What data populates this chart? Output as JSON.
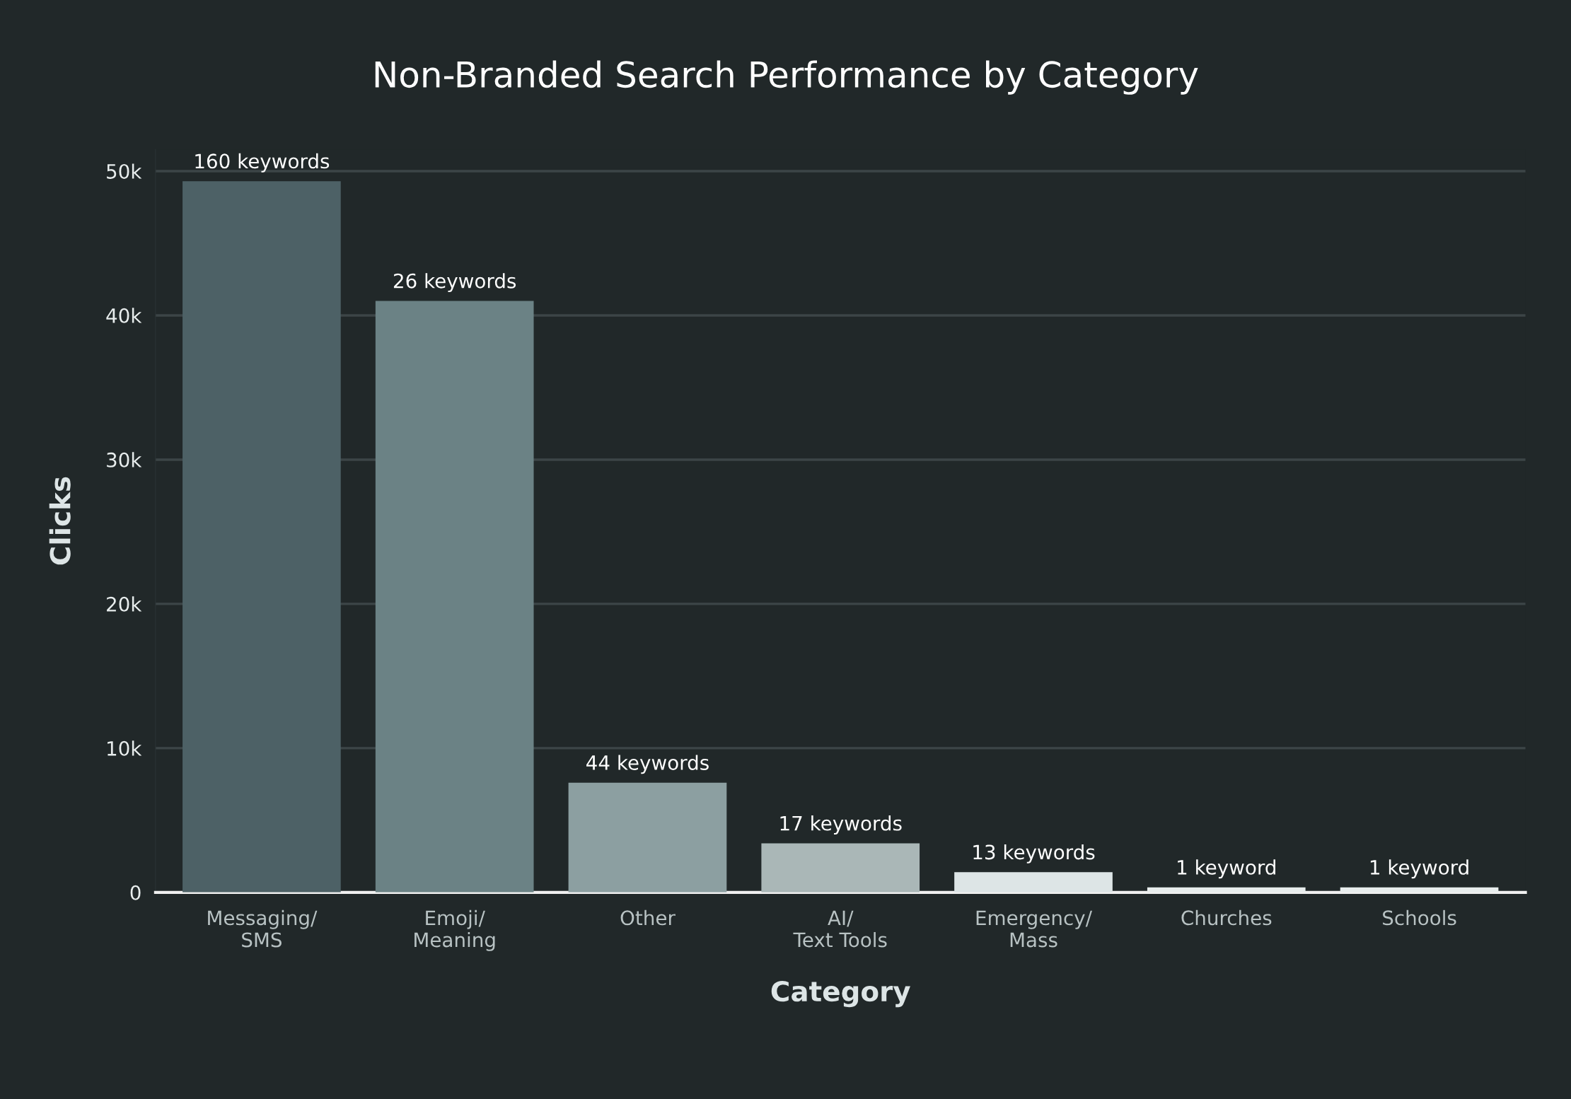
{
  "chart_data": {
    "type": "bar",
    "title": "Non-Branded Search Performance by Category",
    "xlabel": "Category",
    "ylabel": "Clicks",
    "categories": [
      "Messaging/\nSMS",
      "Emoji/\nMeaning",
      "Other",
      "AI/\nText Tools",
      "Emergency/\nMass",
      "Churches",
      "Schools"
    ],
    "values": [
      49300,
      41000,
      7600,
      3400,
      1400,
      350,
      350
    ],
    "colors": [
      "#4d6166",
      "#6b8285",
      "#8c9fa1",
      "#aab7b7",
      "#dde5e6",
      "#e8eded",
      "#e8eded"
    ],
    "annotations": [
      {
        "text": "160 keywords",
        "x": "Messaging/\nSMS",
        "y": 49300
      },
      {
        "text": "26 keywords",
        "x": "Emoji/\nMeaning",
        "y": 41000
      },
      {
        "text": "44 keywords",
        "x": "Other",
        "y": 7600
      },
      {
        "text": "17 keywords",
        "x": "AI/\nText Tools",
        "y": 3400
      },
      {
        "text": "13 keywords",
        "x": "Emergency/\nMass",
        "y": 1400
      },
      {
        "text": "1 keyword",
        "x": "Churches",
        "y": 350
      },
      {
        "text": "1 keyword",
        "x": "Schools",
        "y": 350
      }
    ],
    "ylim": [
      0,
      51500
    ],
    "yticks": [
      0,
      {
        "value": 10000,
        "label": "10k"
      },
      {
        "value": 20000,
        "label": "20k"
      },
      {
        "value": 30000,
        "label": "30k"
      },
      {
        "value": 40000,
        "label": "40k"
      },
      {
        "value": 50000,
        "label": "50k"
      }
    ],
    "grid": "y",
    "legend": false
  }
}
